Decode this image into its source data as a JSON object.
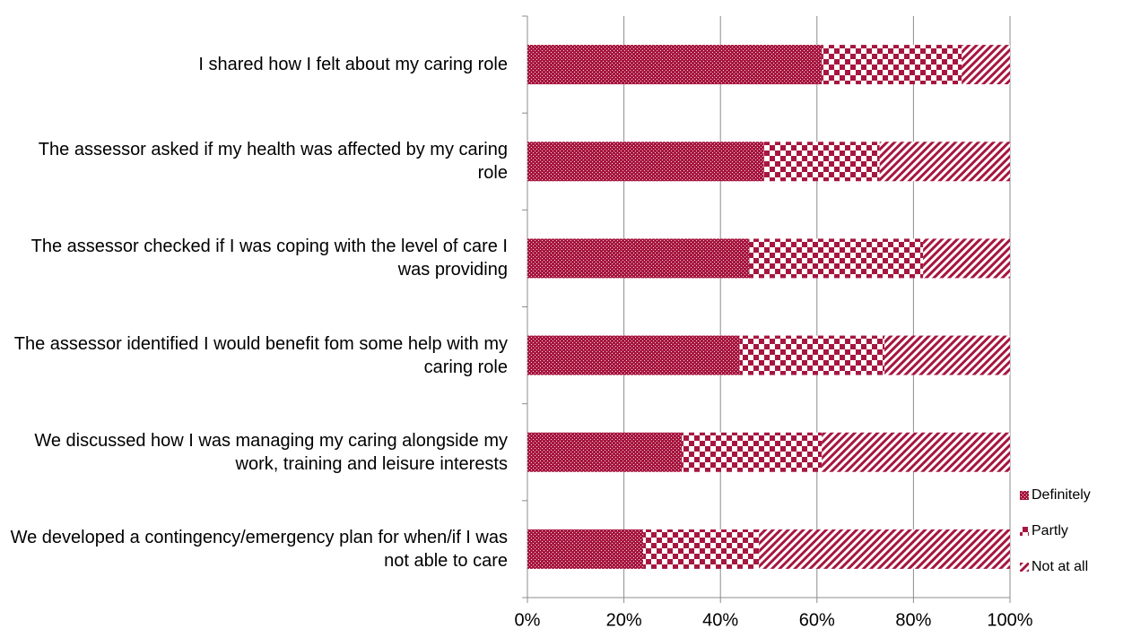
{
  "chart_data": {
    "type": "stacked_barh",
    "categories": [
      "I shared how I felt about my caring role",
      "The assessor asked if my health was affected by my caring role",
      "The assessor checked if I was coping with the level of care I was providing",
      "The assessor identified I would benefit fom some help with my caring role",
      "We discussed how I was managing my caring alongside my work, training and leisure interests",
      "We developed a contingency/emergency plan for when/if I was not able to care"
    ],
    "series": [
      {
        "name": "Definitely",
        "color": "#a6163f",
        "pattern": "dots",
        "values": [
          61,
          49,
          46,
          44,
          32,
          24
        ]
      },
      {
        "name": "Partly",
        "color": "#a6163f",
        "pattern": "checks",
        "values": [
          29,
          24,
          36,
          30,
          29,
          24
        ]
      },
      {
        "name": "Not at all",
        "color": "#a6163f",
        "pattern": "stripes",
        "values": [
          10,
          27,
          18,
          26,
          39,
          52
        ]
      }
    ],
    "xlim": [
      0,
      100
    ],
    "xticks": [
      {
        "value": 0,
        "label": "0%"
      },
      {
        "value": 20,
        "label": "20%"
      },
      {
        "value": 40,
        "label": "40%"
      },
      {
        "value": 60,
        "label": "60%"
      },
      {
        "value": 80,
        "label": "80%"
      },
      {
        "value": 100,
        "label": "100%"
      }
    ],
    "grid": true,
    "legend": "right"
  }
}
